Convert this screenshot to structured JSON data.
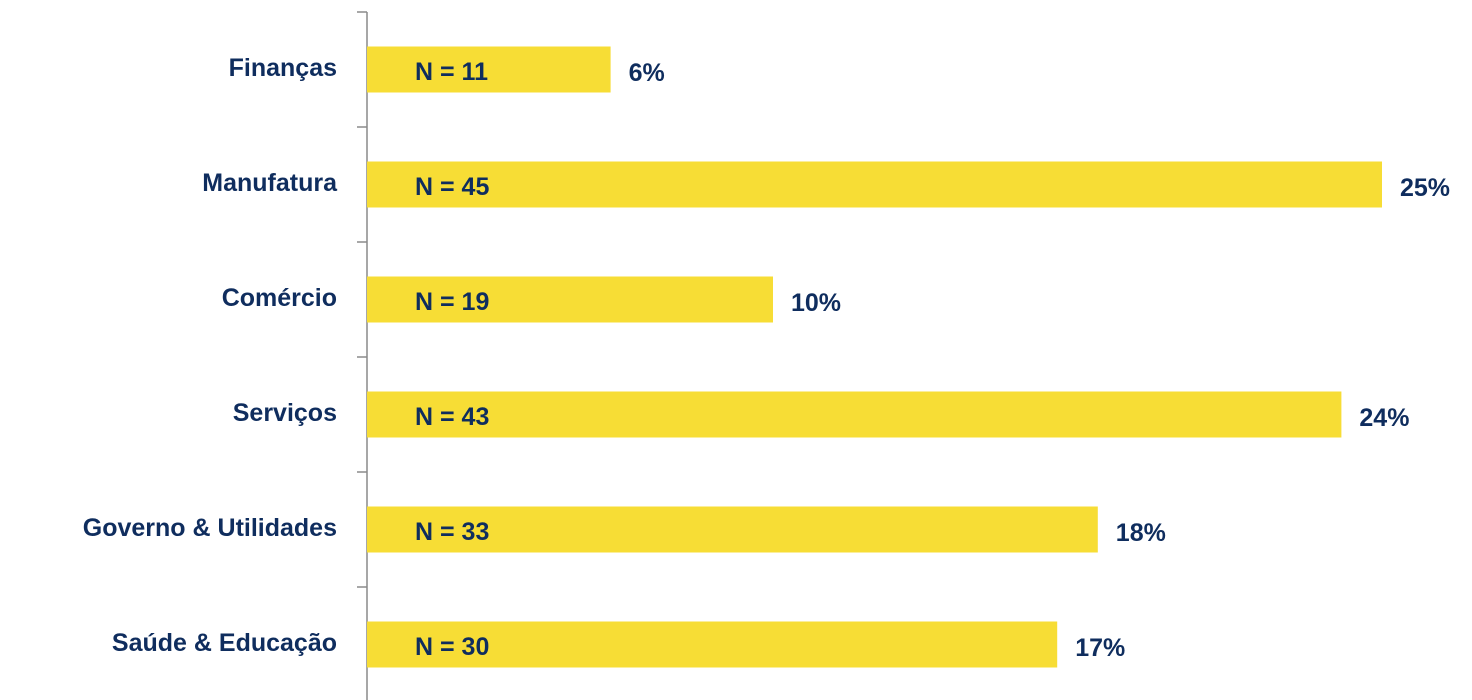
{
  "chart_data": {
    "type": "hbar",
    "categories": [
      "Finanças",
      "Manufatura",
      "Comércio",
      "Serviços",
      "Governo & Utilidades",
      "Saúde & Educação"
    ],
    "values": [
      6,
      25,
      10,
      24,
      18,
      17
    ],
    "value_labels": [
      "6%",
      "25%",
      "10%",
      "24%",
      "18%",
      "17%"
    ],
    "annotations": [
      "N = 11",
      "N = 45",
      "N = 19",
      "N = 43",
      "N = 33",
      "N = 30"
    ],
    "color": "#f7dd35",
    "xlim": [
      0,
      25
    ]
  }
}
